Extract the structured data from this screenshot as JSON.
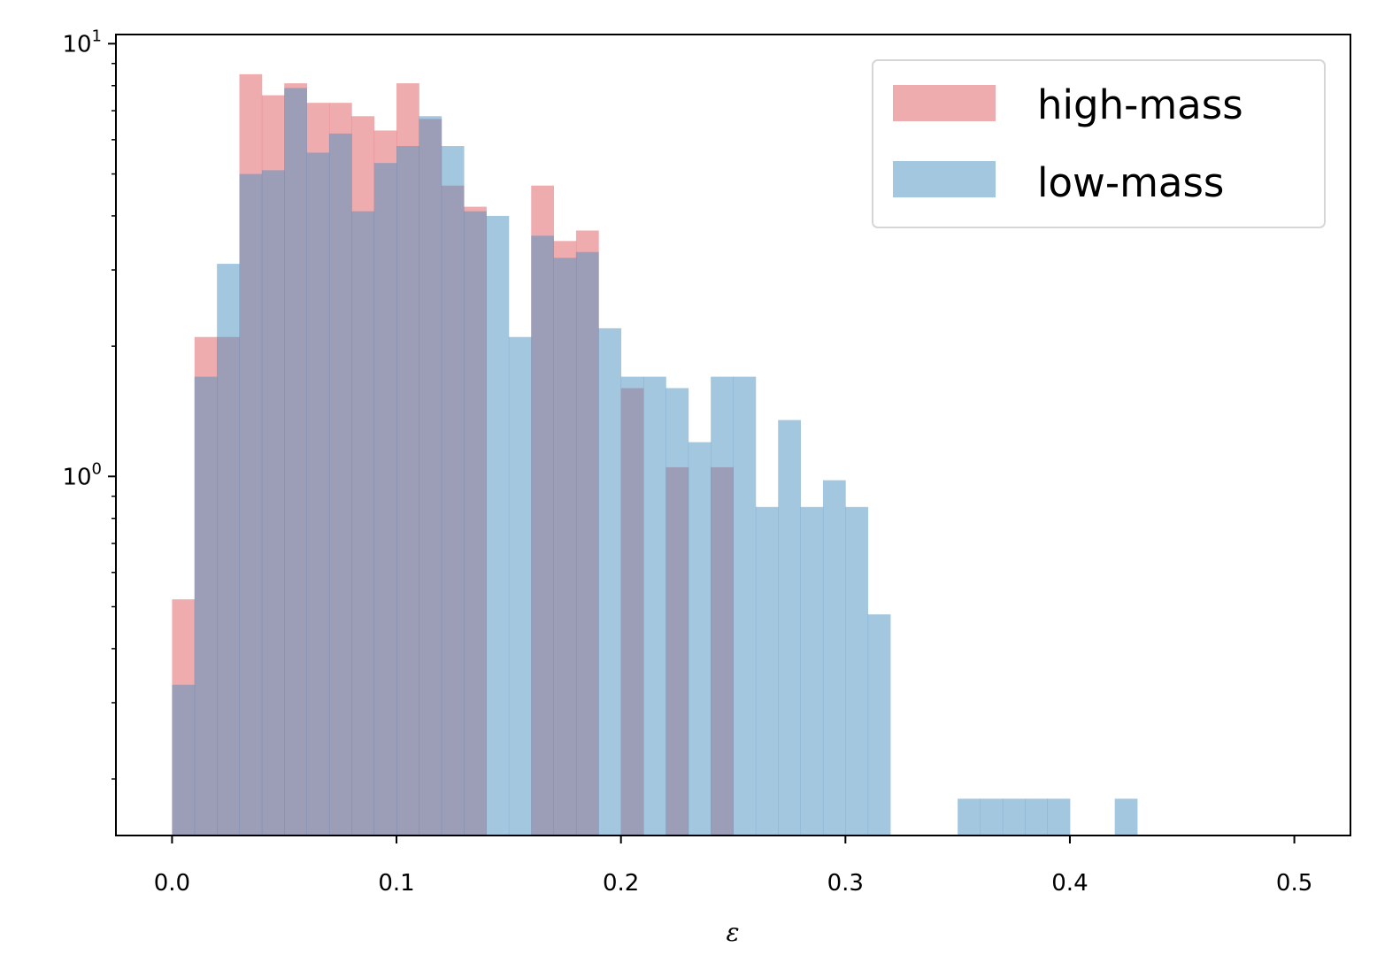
{
  "chart_data": {
    "type": "bar",
    "histogram": true,
    "xlabel": "ε",
    "ylabel": "",
    "title": "",
    "xlim": [
      -0.025,
      0.525
    ],
    "ylim": [
      0.148,
      10.5
    ],
    "yscale": "log",
    "grid": false,
    "legend_position": "upper-right",
    "x_ticks": [
      {
        "value": 0.0,
        "label": "0.0"
      },
      {
        "value": 0.1,
        "label": "0.1"
      },
      {
        "value": 0.2,
        "label": "0.2"
      },
      {
        "value": 0.3,
        "label": "0.3"
      },
      {
        "value": 0.4,
        "label": "0.4"
      },
      {
        "value": 0.5,
        "label": "0.5"
      }
    ],
    "y_ticks": [
      {
        "value": 1,
        "base": "10",
        "exp": "0"
      },
      {
        "value": 10,
        "base": "10",
        "exp": "1"
      }
    ],
    "bin_edges": [
      0.0,
      0.01,
      0.02,
      0.03,
      0.04,
      0.05,
      0.06,
      0.07,
      0.08,
      0.09,
      0.1,
      0.11,
      0.12,
      0.13,
      0.14,
      0.15,
      0.16,
      0.17,
      0.18,
      0.19,
      0.2,
      0.21,
      0.22,
      0.23,
      0.24,
      0.25,
      0.26,
      0.27,
      0.28,
      0.29,
      0.3,
      0.31,
      0.32,
      0.33,
      0.34,
      0.35,
      0.36,
      0.37,
      0.38,
      0.39,
      0.4,
      0.41,
      0.42,
      0.43,
      0.44,
      0.45,
      0.46,
      0.47,
      0.48,
      0.49,
      0.5
    ],
    "series": [
      {
        "name": "high-mass",
        "color": "#e05a5f",
        "values": [
          0.52,
          2.1,
          2.1,
          8.5,
          7.6,
          8.1,
          7.3,
          7.3,
          6.8,
          6.3,
          8.1,
          6.7,
          4.7,
          4.2,
          0,
          0,
          4.7,
          3.5,
          3.7,
          0,
          1.6,
          0,
          1.05,
          0,
          1.05,
          0,
          0,
          0,
          0,
          0,
          0,
          0,
          0,
          0,
          0,
          0,
          0,
          0,
          0,
          0,
          0,
          0,
          0,
          0,
          0,
          0,
          0,
          0,
          0,
          0
        ]
      },
      {
        "name": "low-mass",
        "color": "#4a90c2",
        "values": [
          0.33,
          1.7,
          3.1,
          5.0,
          5.1,
          7.9,
          5.6,
          6.2,
          4.1,
          5.3,
          5.8,
          6.8,
          5.8,
          4.1,
          4.0,
          2.1,
          3.6,
          3.2,
          3.3,
          2.2,
          1.7,
          1.7,
          1.6,
          1.2,
          1.7,
          1.7,
          0.85,
          1.35,
          0.85,
          0.98,
          0.85,
          0.48,
          0,
          0,
          0,
          0.18,
          0.18,
          0.18,
          0.18,
          0.18,
          0,
          0,
          0.18,
          0,
          0,
          0,
          0,
          0,
          0,
          0
        ]
      }
    ]
  }
}
